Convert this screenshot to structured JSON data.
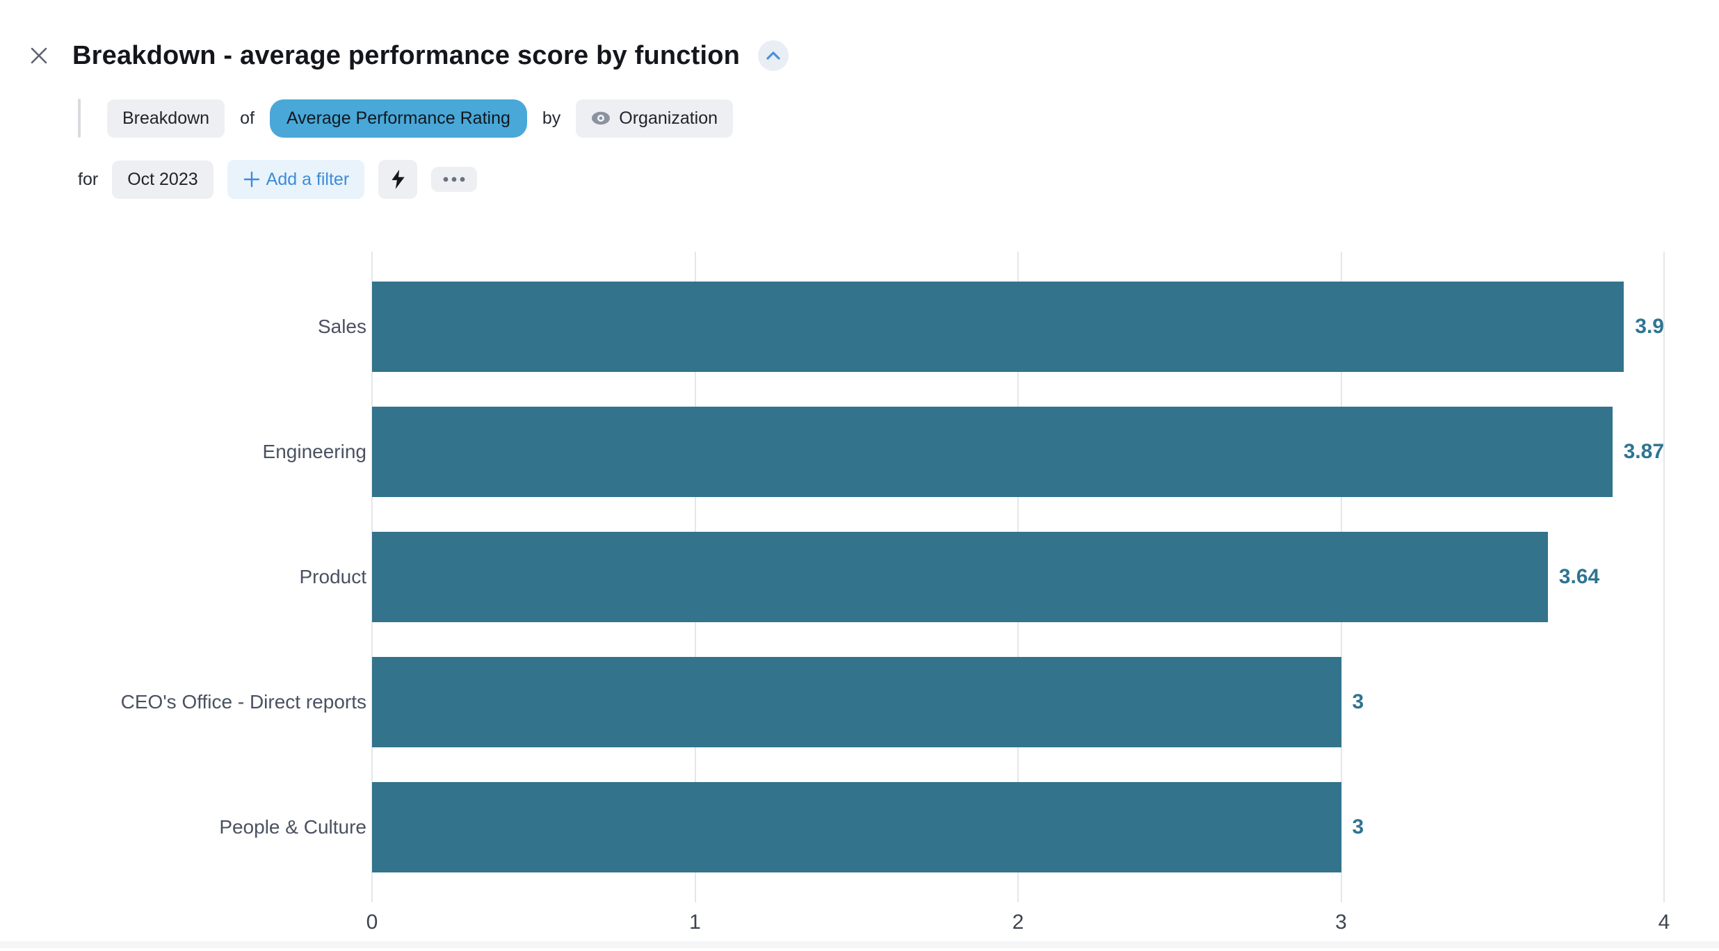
{
  "header": {
    "title": "Breakdown - average performance score by function"
  },
  "query": {
    "operation_label": "Breakdown",
    "of_label": "of",
    "metric_label": "Average Performance Rating",
    "by_label": "by",
    "dimension_label": "Organization",
    "for_label": "for",
    "period_label": "Oct 2023",
    "add_filter_label": "Add a filter"
  },
  "icons": {
    "close": "close-icon",
    "collapse": "chevron-up-icon",
    "dimension": "eye-icon",
    "quick_actions": "lightning-bolt-icon",
    "more": "ellipsis-icon",
    "add": "plus-icon"
  },
  "colors": {
    "bar": "#33738c",
    "value_label": "#2e7492",
    "metric_pill_bg": "#49a8d8",
    "pill_bg": "#edeff2",
    "add_filter_bg": "#e8f3fb",
    "add_filter_text": "#3d8cd8",
    "accent_blue": "#4a90d9",
    "gridline": "#e4e6ea"
  },
  "chart_data": {
    "type": "bar",
    "orientation": "horizontal",
    "title": "Breakdown - average performance score by function",
    "categories": [
      "Sales",
      "Engineering",
      "Product",
      "CEO's Office - Direct reports",
      "People & Culture"
    ],
    "values": [
      3.9,
      3.87,
      3.64,
      3,
      3
    ],
    "xlabel": "",
    "ylabel": "",
    "xlim": [
      0,
      4
    ],
    "xticks": [
      0,
      1,
      2,
      3,
      4
    ],
    "grid": true,
    "legend": false
  }
}
